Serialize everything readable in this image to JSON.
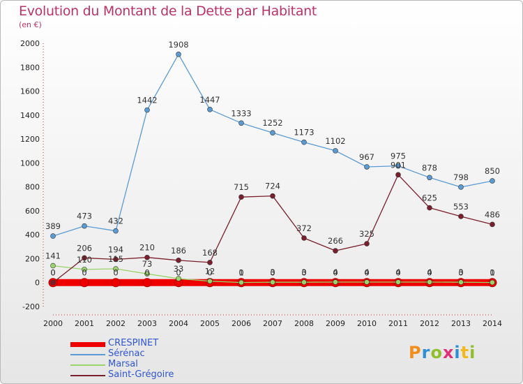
{
  "title": "Evolution du Montant de la Dette par Habitant",
  "subtitle": "(en €)",
  "logo": {
    "letters": [
      "P",
      "r",
      "o",
      "x",
      "i",
      "t",
      "i"
    ],
    "colors": [
      "#f28c1c",
      "#2f8fd6",
      "#8fbf2a",
      "#e0307a",
      "#2f8fd6",
      "#f2b81c",
      "#8fbf2a"
    ]
  },
  "chart_data": {
    "type": "line",
    "x": [
      "2000",
      "2001",
      "2002",
      "2003",
      "2004",
      "2005",
      "2006",
      "2007",
      "2008",
      "2009",
      "2010",
      "2011",
      "2012",
      "2013",
      "2014"
    ],
    "ylim": [
      -200,
      2000
    ],
    "yticks": [
      -200,
      0,
      200,
      400,
      600,
      800,
      1000,
      1200,
      1400,
      1600,
      1800,
      2000
    ],
    "grid": false,
    "legend_position": "bottom-left",
    "series": [
      {
        "name": "CRESPINET",
        "color": "#ee0000",
        "width": 10,
        "values": [
          0,
          0,
          0,
          0,
          0,
          0,
          0,
          0,
          0,
          0,
          0,
          0,
          0,
          0,
          0
        ],
        "labels": [
          "0",
          "0",
          "0",
          "0",
          "0",
          "0",
          "0",
          "0",
          "0",
          "0",
          "0",
          "0",
          "0",
          "0",
          "0"
        ]
      },
      {
        "name": "Sérénac",
        "color": "#5b9bd5",
        "width": 1.3,
        "values": [
          389,
          473,
          432,
          1442,
          1908,
          1447,
          1333,
          1252,
          1173,
          1102,
          967,
          975,
          878,
          798,
          850
        ],
        "labels": [
          "389",
          "473",
          "432",
          "1442",
          "1908",
          "1447",
          "1333",
          "1252",
          "1173",
          "1102",
          "967",
          "975",
          "878",
          "798",
          "850"
        ]
      },
      {
        "name": "Marsal",
        "color": "#9ad36a",
        "width": 1.3,
        "values": [
          141,
          110,
          115,
          73,
          33,
          12,
          1,
          3,
          3,
          4,
          4,
          4,
          4,
          3,
          1
        ],
        "labels": [
          "141",
          "110",
          "115",
          "73",
          "33",
          "12",
          "1",
          "3",
          "3",
          "4",
          "4",
          "4",
          "4",
          "3",
          "1"
        ]
      },
      {
        "name": "Saint-Grégoire",
        "color": "#7a1f2b",
        "width": 1.3,
        "values": [
          0,
          206,
          194,
          210,
          186,
          168,
          715,
          724,
          372,
          266,
          325,
          901,
          625,
          553,
          486
        ],
        "labels": [
          "0",
          "206",
          "194",
          "210",
          "186",
          "168",
          "715",
          "724",
          "372",
          "266",
          "325",
          "901",
          "625",
          "553",
          "486"
        ]
      }
    ]
  }
}
